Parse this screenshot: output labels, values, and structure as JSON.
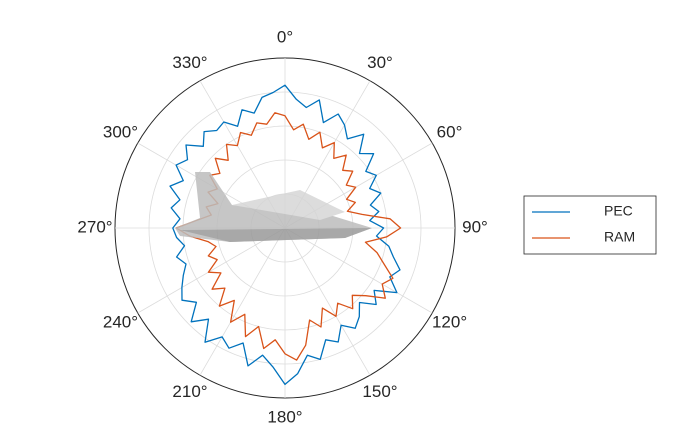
{
  "chart_data": {
    "type": "polar-line",
    "theta": [
      0,
      5,
      10,
      15,
      20,
      25,
      30,
      35,
      40,
      45,
      50,
      55,
      60,
      65,
      70,
      75,
      80,
      85,
      90,
      95,
      100,
      105,
      110,
      115,
      120,
      125,
      130,
      135,
      140,
      145,
      150,
      155,
      160,
      165,
      170,
      175,
      180,
      185,
      190,
      195,
      200,
      205,
      210,
      215,
      220,
      225,
      230,
      235,
      240,
      245,
      250,
      255,
      260,
      265,
      270,
      275,
      280,
      285,
      290,
      295,
      300,
      305,
      310,
      315,
      320,
      325,
      330,
      335,
      340,
      345,
      350,
      355
    ],
    "series": [
      {
        "name": "PEC",
        "color": "#0072bd",
        "values": [
          0.84,
          0.76,
          0.72,
          0.78,
          0.66,
          0.74,
          0.7,
          0.64,
          0.72,
          0.62,
          0.68,
          0.58,
          0.62,
          0.55,
          0.6,
          0.52,
          0.56,
          0.5,
          0.58,
          0.54,
          0.62,
          0.66,
          0.72,
          0.68,
          0.76,
          0.64,
          0.7,
          0.62,
          0.68,
          0.72,
          0.66,
          0.74,
          0.7,
          0.8,
          0.76,
          0.86,
          0.92,
          0.82,
          0.76,
          0.84,
          0.72,
          0.78,
          0.74,
          0.82,
          0.7,
          0.78,
          0.68,
          0.74,
          0.7,
          0.66,
          0.62,
          0.66,
          0.6,
          0.64,
          0.66,
          0.62,
          0.68,
          0.64,
          0.72,
          0.66,
          0.74,
          0.7,
          0.76,
          0.68,
          0.74,
          0.7,
          0.72,
          0.66,
          0.74,
          0.7,
          0.78,
          0.8
        ]
      },
      {
        "name": "RAM",
        "color": "#d95319",
        "values": [
          0.66,
          0.58,
          0.62,
          0.54,
          0.6,
          0.52,
          0.58,
          0.5,
          0.56,
          0.48,
          0.52,
          0.44,
          0.48,
          0.4,
          0.44,
          0.38,
          0.46,
          0.62,
          0.68,
          0.6,
          0.48,
          0.56,
          0.62,
          0.7,
          0.66,
          0.72,
          0.62,
          0.56,
          0.62,
          0.54,
          0.6,
          0.52,
          0.62,
          0.56,
          0.7,
          0.78,
          0.74,
          0.66,
          0.72,
          0.6,
          0.68,
          0.56,
          0.64,
          0.52,
          0.6,
          0.5,
          0.56,
          0.46,
          0.52,
          0.44,
          0.48,
          0.42,
          0.46,
          0.56,
          0.64,
          0.52,
          0.44,
          0.48,
          0.42,
          0.5,
          0.46,
          0.54,
          0.5,
          0.58,
          0.52,
          0.6,
          0.56,
          0.62,
          0.58,
          0.64,
          0.62,
          0.68
        ]
      }
    ],
    "rlim": [
      0,
      1
    ],
    "rticks": [
      0.2,
      0.4,
      0.6,
      0.8,
      1
    ],
    "thetaticks": [
      {
        "value": 0,
        "label": "0°"
      },
      {
        "value": 30,
        "label": "30°"
      },
      {
        "value": 60,
        "label": "60°"
      },
      {
        "value": 90,
        "label": "90°"
      },
      {
        "value": 120,
        "label": "120°"
      },
      {
        "value": 150,
        "label": "150°"
      },
      {
        "value": 180,
        "label": "180°"
      },
      {
        "value": 210,
        "label": "210°"
      },
      {
        "value": 240,
        "label": "240°"
      },
      {
        "value": 270,
        "label": "270°"
      },
      {
        "value": 300,
        "label": "300°"
      },
      {
        "value": 330,
        "label": "330°"
      }
    ],
    "grid": true,
    "legend": "right"
  }
}
